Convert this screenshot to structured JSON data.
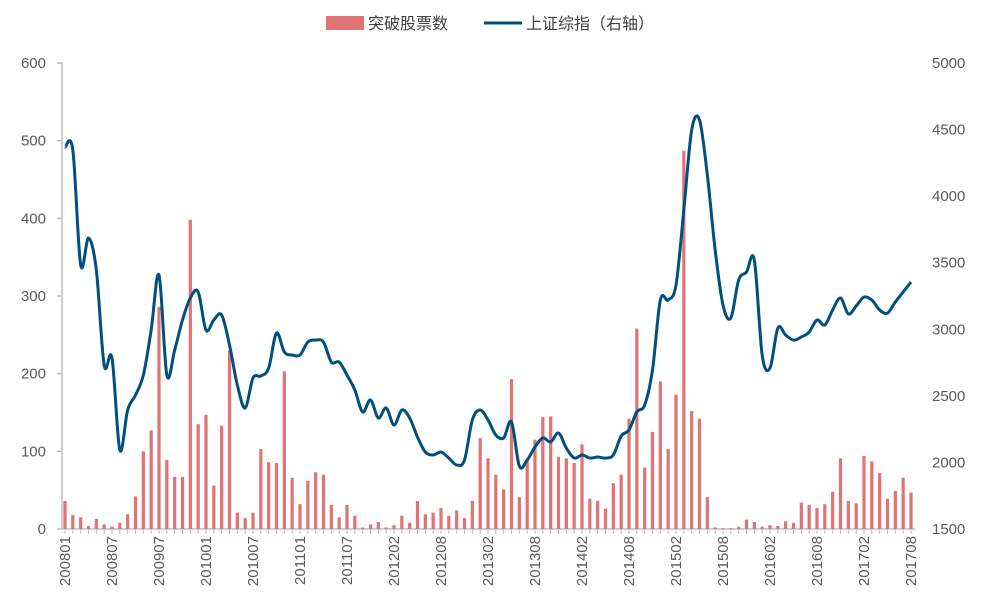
{
  "chart_data": {
    "type": "bar+line",
    "title": "",
    "legend": {
      "placement": "top-center",
      "entries": [
        "突破股票数",
        "上证综指（右轴）"
      ]
    },
    "colors": {
      "bars": "#E07373",
      "line": "#00507F",
      "axis": "#BFBFBF"
    },
    "x_tick_labels": [
      "200801",
      "200807",
      "200907",
      "201001",
      "201007",
      "201101",
      "201107",
      "201202",
      "201208",
      "201302",
      "201308",
      "201402",
      "201408",
      "201502",
      "201508",
      "201602",
      "201608",
      "201702",
      "201708"
    ],
    "tick_every": 6,
    "y_left": {
      "min": 0,
      "max": 600,
      "step": 100,
      "ticks": [
        "0",
        "100",
        "200",
        "300",
        "400",
        "500",
        "600"
      ]
    },
    "y_right": {
      "min": 1500,
      "max": 5000,
      "step": 500,
      "ticks": [
        "1500",
        "2000",
        "2500",
        "3000",
        "3500",
        "4000",
        "4500",
        "5000"
      ]
    },
    "series": [
      {
        "name": "突破股票数",
        "type": "bar",
        "axis": "left",
        "values": [
          36,
          18,
          15,
          4,
          13,
          6,
          3,
          8,
          19,
          42,
          100,
          127,
          286,
          89,
          67,
          67,
          398,
          135,
          147,
          56,
          133,
          230,
          21,
          14,
          21,
          103,
          86,
          85,
          203,
          66,
          32,
          62,
          73,
          70,
          31,
          15,
          31,
          17,
          2,
          6,
          9,
          2,
          5,
          17,
          8,
          36,
          19,
          21,
          27,
          17,
          24,
          14,
          36,
          117,
          91,
          70,
          51,
          193,
          41,
          91,
          115,
          144,
          145,
          93,
          91,
          85,
          109,
          39,
          36,
          26,
          59,
          70,
          142,
          258,
          79,
          125,
          190,
          103,
          173,
          487,
          152,
          142,
          41,
          2,
          1,
          1,
          3,
          12,
          9,
          3,
          5,
          4,
          10,
          8,
          34,
          31,
          27,
          32,
          48,
          91,
          36,
          33,
          94,
          87,
          72,
          39,
          49,
          66,
          47
        ]
      },
      {
        "name": "上证综指（右轴）",
        "type": "line",
        "axis": "right",
        "values": [
          4369,
          4346,
          3483,
          3685,
          3445,
          2731,
          2784,
          2093,
          2394,
          2506,
          2656,
          2994,
          3407,
          2656,
          2844,
          3070,
          3235,
          3280,
          2994,
          3070,
          3107,
          2882,
          2581,
          2409,
          2634,
          2649,
          2709,
          2972,
          2829,
          2807,
          2807,
          2904,
          2919,
          2904,
          2754,
          2754,
          2656,
          2544,
          2379,
          2469,
          2334,
          2409,
          2281,
          2394,
          2334,
          2191,
          2078,
          2056,
          2078,
          2033,
          1981,
          2018,
          2319,
          2394,
          2319,
          2206,
          2184,
          2304,
          1973,
          2018,
          2116,
          2184,
          2154,
          2221,
          2108,
          2033,
          2056,
          2033,
          2041,
          2033,
          2056,
          2198,
          2244,
          2379,
          2431,
          2694,
          3220,
          3220,
          3332,
          3896,
          4496,
          4572,
          4159,
          3595,
          3182,
          3085,
          3370,
          3430,
          3520,
          2807,
          2709,
          3009,
          2957,
          2919,
          2942,
          2979,
          3070,
          3032,
          3145,
          3235,
          3115,
          3175,
          3242,
          3220,
          3145,
          3122,
          3205,
          3280,
          3355
        ]
      }
    ]
  }
}
